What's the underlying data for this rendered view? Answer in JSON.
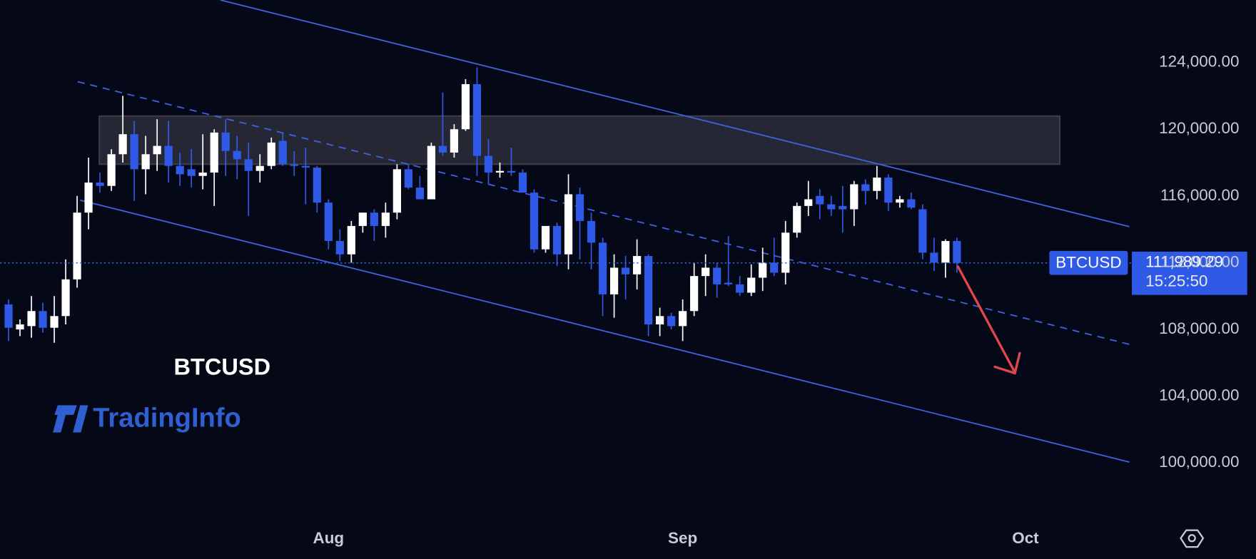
{
  "chart_data": {
    "type": "candlestick",
    "symbol": "BTCUSD",
    "logo": "TradingInfo",
    "up_color": "#ffffff",
    "down_color": "#2f5ae8",
    "grid": false,
    "xlim": [
      -28.75,
      70.1
    ],
    "xticks": [
      {
        "value": 0,
        "label": "Aug"
      },
      {
        "value": 31,
        "label": "Sep"
      },
      {
        "value": 61,
        "label": "Oct"
      }
    ],
    "ylim": [
      96784,
      127744
    ],
    "yticks": [
      {
        "value": 100000,
        "label": "100,000.00"
      },
      {
        "value": 104000,
        "label": "104,000.00"
      },
      {
        "value": 108000,
        "label": "108,000.00"
      },
      {
        "value": 112000,
        "label": "112,000.00"
      },
      {
        "value": 116000,
        "label": "116,000.00"
      },
      {
        "value": 120000,
        "label": "120,000.00"
      },
      {
        "value": 124000,
        "label": "124,000.00"
      }
    ],
    "last_price": {
      "value": 111989.29,
      "label": "111,989.29"
    },
    "countdown": "15:25:50",
    "x": [
      -28,
      -27,
      -26,
      -25,
      -24,
      -23,
      -22,
      -21,
      -20,
      -19,
      -18,
      -17,
      -16,
      -15,
      -14,
      -13,
      -12,
      -11,
      -10,
      -9,
      -8,
      -7,
      -6,
      -5,
      -4,
      -3,
      -2,
      -1,
      0,
      1,
      2,
      3,
      4,
      5,
      6,
      7,
      8,
      9,
      10,
      11,
      12,
      13,
      14,
      15,
      16,
      17,
      18,
      19,
      20,
      21,
      22,
      23,
      24,
      25,
      26,
      27,
      28,
      29,
      30,
      31,
      32,
      33,
      34,
      35,
      36,
      37,
      38,
      39,
      40,
      41,
      42,
      43,
      44,
      45,
      46,
      47,
      48,
      49,
      50,
      51,
      52,
      53,
      54,
      55
    ],
    "open": [
      109500,
      108000,
      108200,
      109100,
      108100,
      108800,
      111000,
      115000,
      116800,
      116600,
      118500,
      119700,
      117600,
      118500,
      119000,
      117800,
      117600,
      117200,
      117400,
      119800,
      118700,
      118200,
      117500,
      117800,
      119300,
      117900,
      117800,
      117700,
      115600,
      113300,
      112500,
      114200,
      115000,
      114200,
      115000,
      117600,
      116500,
      115800,
      119000,
      118600,
      120000,
      122700,
      118400,
      117400,
      117500,
      117400,
      116200,
      112800,
      114200,
      112500,
      116100,
      114500,
      113200,
      110100,
      111700,
      111300,
      112400,
      108300,
      108800,
      108200,
      109100,
      111200,
      111700,
      110800,
      110700,
      110200,
      111100,
      112000,
      111400,
      113800,
      115400,
      116000,
      115500,
      115400,
      115200,
      116700,
      116300,
      117100,
      115600,
      115800,
      115200,
      112600,
      112000,
      113300
    ],
    "high": [
      109800,
      108600,
      110000,
      109600,
      110000,
      112200,
      116000,
      118300,
      117400,
      118800,
      122000,
      120500,
      119600,
      120600,
      120500,
      118600,
      118800,
      119700,
      120000,
      120600,
      119600,
      119200,
      118500,
      119500,
      119800,
      118700,
      118900,
      117800,
      115800,
      114000,
      114500,
      115000,
      115200,
      115600,
      117900,
      117900,
      117200,
      119200,
      122200,
      120300,
      123000,
      123700,
      119400,
      118000,
      118900,
      117600,
      116400,
      114200,
      114400,
      117300,
      116500,
      115000,
      113500,
      112500,
      112400,
      113400,
      112500,
      109300,
      109000,
      109800,
      112000,
      112500,
      112000,
      113600,
      111200,
      111900,
      112900,
      113500,
      114500,
      115600,
      116900,
      116400,
      116000,
      116600,
      116900,
      117000,
      117800,
      117300,
      116000,
      116200,
      115500,
      113500,
      113400,
      113500
    ],
    "low": [
      107300,
      107600,
      107500,
      107800,
      107200,
      108300,
      110500,
      114000,
      116200,
      116300,
      118000,
      115700,
      116100,
      117500,
      116800,
      116600,
      116500,
      116400,
      115400,
      117200,
      117000,
      114800,
      116800,
      117600,
      117800,
      117200,
      115500,
      115000,
      112800,
      112100,
      112000,
      113800,
      113300,
      113500,
      114600,
      116400,
      115800,
      115800,
      118400,
      118300,
      119900,
      117200,
      116700,
      117100,
      117200,
      116200,
      112600,
      112600,
      111800,
      111600,
      112200,
      111600,
      108800,
      108700,
      109800,
      110400,
      107600,
      107600,
      108000,
      107300,
      108800,
      110000,
      109900,
      110600,
      110000,
      110000,
      110300,
      111200,
      110700,
      113500,
      114800,
      114600,
      114800,
      113800,
      114200,
      115500,
      115800,
      115100,
      115300,
      115200,
      112200,
      111500,
      111100,
      111400
    ],
    "close": [
      108100,
      108300,
      109100,
      108100,
      108800,
      111000,
      115000,
      116800,
      116600,
      118500,
      119700,
      117600,
      118500,
      119000,
      117800,
      117300,
      117200,
      117400,
      119800,
      118700,
      118200,
      117500,
      117800,
      119200,
      117900,
      117800,
      117700,
      115600,
      113300,
      112500,
      114200,
      115000,
      114200,
      115000,
      117600,
      116500,
      115800,
      119000,
      118600,
      120000,
      122700,
      118400,
      117400,
      117500,
      117400,
      116200,
      112800,
      114200,
      112500,
      116100,
      114500,
      113200,
      110100,
      111700,
      111300,
      112400,
      108300,
      108800,
      108200,
      109100,
      111200,
      111700,
      110700,
      110700,
      110200,
      111100,
      112000,
      111400,
      113800,
      115400,
      115800,
      115500,
      115200,
      115200,
      116700,
      116300,
      117100,
      115600,
      115800,
      115300,
      112600,
      112000,
      113300,
      111989.29
    ]
  }
}
